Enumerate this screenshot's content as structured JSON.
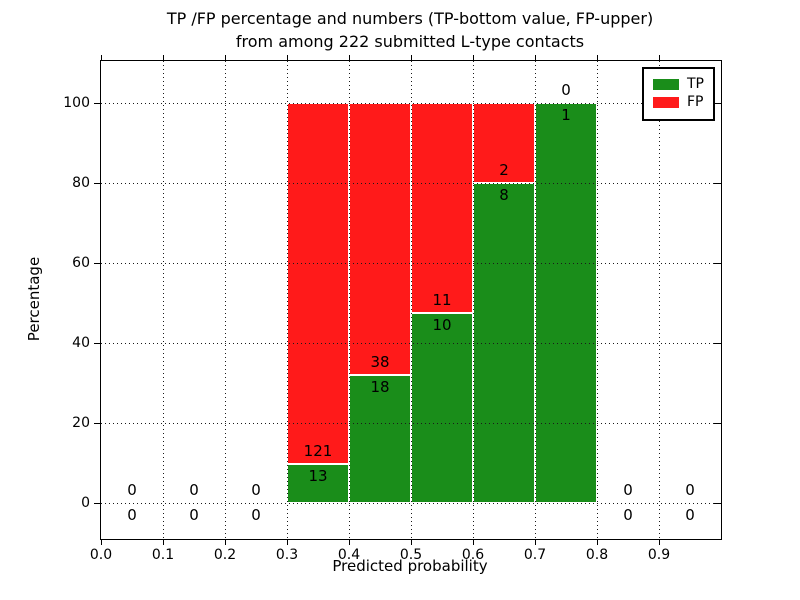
{
  "title": {
    "line1": "TP /FP percentage and numbers (TP-bottom value, FP-upper)",
    "line2": "from among 222 submitted L-type contacts"
  },
  "chart_data": {
    "type": "bar",
    "stacked": true,
    "title": "TP /FP percentage and numbers (TP-bottom value, FP-upper)\nfrom among 222 submitted L-type contacts",
    "title_lines": [
      "TP /FP percentage and numbers (TP-bottom value, FP-upper)",
      "from among 222 submitted L-type contacts"
    ],
    "xlabel": "Predicted probability",
    "ylabel": "Percentage",
    "total_submitted": 222,
    "xlim": [
      0.0,
      1.0
    ],
    "ylim": [
      -9,
      110.5
    ],
    "xticks": [
      0.0,
      0.1,
      0.2,
      0.3,
      0.4,
      0.5,
      0.6,
      0.7,
      0.8,
      0.9
    ],
    "xtick_labels": [
      "0.0",
      "0.1",
      "0.2",
      "0.3",
      "0.4",
      "0.5",
      "0.6",
      "0.7",
      "0.8",
      "0.9"
    ],
    "yticks": [
      0,
      20,
      40,
      60,
      80,
      100
    ],
    "ytick_labels": [
      "0",
      "20",
      "40",
      "60",
      "80",
      "100"
    ],
    "grid": true,
    "grid_style": "dotted",
    "legend_position": "upper right",
    "series": [
      {
        "name": "TP",
        "color": "#1a8d1a"
      },
      {
        "name": "FP",
        "color": "#ff1a1a"
      }
    ],
    "colors": {
      "tp": "#1a8d1a",
      "fp": "#ff1a1a",
      "text": "#000000",
      "grid": "#1a1a1a"
    },
    "bins": [
      {
        "range": [
          0.0,
          0.1
        ],
        "tp": 0,
        "fp": 0,
        "tp_pct": 0,
        "fp_pct": 0
      },
      {
        "range": [
          0.1,
          0.2
        ],
        "tp": 0,
        "fp": 0,
        "tp_pct": 0,
        "fp_pct": 0
      },
      {
        "range": [
          0.2,
          0.3
        ],
        "tp": 0,
        "fp": 0,
        "tp_pct": 0,
        "fp_pct": 0
      },
      {
        "range": [
          0.3,
          0.4
        ],
        "tp": 13,
        "fp": 121,
        "tp_pct": 9.7,
        "fp_pct": 90.3
      },
      {
        "range": [
          0.4,
          0.5
        ],
        "tp": 18,
        "fp": 38,
        "tp_pct": 32.1,
        "fp_pct": 67.9
      },
      {
        "range": [
          0.5,
          0.6
        ],
        "tp": 10,
        "fp": 11,
        "tp_pct": 47.6,
        "fp_pct": 52.4
      },
      {
        "range": [
          0.6,
          0.7
        ],
        "tp": 8,
        "fp": 2,
        "tp_pct": 80.0,
        "fp_pct": 20.0
      },
      {
        "range": [
          0.7,
          0.8
        ],
        "tp": 1,
        "fp": 0,
        "tp_pct": 100.0,
        "fp_pct": 0.0
      },
      {
        "range": [
          0.8,
          0.9
        ],
        "tp": 0,
        "fp": 0,
        "tp_pct": 0,
        "fp_pct": 0
      },
      {
        "range": [
          0.9,
          1.0
        ],
        "tp": 0,
        "fp": 0,
        "tp_pct": 0,
        "fp_pct": 0
      }
    ]
  }
}
